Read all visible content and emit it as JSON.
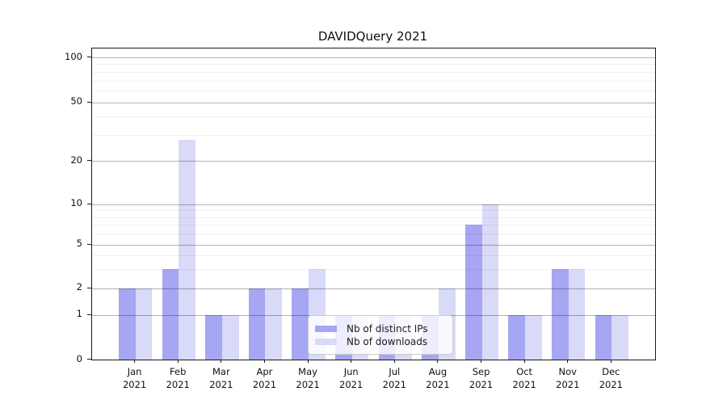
{
  "title": "DAVIDQuery 2021",
  "legend": {
    "items": [
      {
        "label": "Nb of distinct IPs",
        "color": "#a6a6f2"
      },
      {
        "label": "Nb of downloads",
        "color": "#d9d9f8"
      }
    ]
  },
  "chart_data": {
    "type": "bar",
    "title": "DAVIDQuery 2021",
    "categories": [
      "Jan 2021",
      "Feb 2021",
      "Mar 2021",
      "Apr 2021",
      "May 2021",
      "Jun 2021",
      "Jul 2021",
      "Aug 2021",
      "Sep 2021",
      "Oct 2021",
      "Nov 2021",
      "Dec 2021"
    ],
    "x_tick_labels": [
      {
        "line1": "Jan",
        "line2": "2021"
      },
      {
        "line1": "Feb",
        "line2": "2021"
      },
      {
        "line1": "Mar",
        "line2": "2021"
      },
      {
        "line1": "Apr",
        "line2": "2021"
      },
      {
        "line1": "May",
        "line2": "2021"
      },
      {
        "line1": "Jun",
        "line2": "2021"
      },
      {
        "line1": "Jul",
        "line2": "2021"
      },
      {
        "line1": "Aug",
        "line2": "2021"
      },
      {
        "line1": "Sep",
        "line2": "2021"
      },
      {
        "line1": "Oct",
        "line2": "2021"
      },
      {
        "line1": "Nov",
        "line2": "2021"
      },
      {
        "line1": "Dec",
        "line2": "2021"
      }
    ],
    "series": [
      {
        "name": "Nb of distinct IPs",
        "color": "#a6a6f2",
        "values": [
          2,
          3,
          1,
          2,
          2,
          1,
          1,
          1,
          7,
          1,
          3,
          1
        ]
      },
      {
        "name": "Nb of downloads",
        "color": "#d9d9f8",
        "values": [
          2,
          28,
          1,
          2,
          3,
          1,
          1,
          2,
          10,
          1,
          3,
          1
        ]
      }
    ],
    "yscale": "symlog",
    "ytick_values": [
      0,
      1,
      2,
      5,
      10,
      20,
      50,
      100
    ],
    "ytick_labels": [
      "0",
      "1",
      "2",
      "5",
      "10",
      "20",
      "50",
      "100"
    ],
    "minor_ytick_values": [
      3,
      4,
      6,
      7,
      8,
      9,
      30,
      40,
      60,
      70,
      80,
      90
    ],
    "ylim": [
      0,
      115
    ],
    "grid": "both",
    "legend_position": "lower center",
    "colors": {
      "bar_ips": "#a6a6f2",
      "bar_downloads": "#d9d9f8",
      "major_grid": "#b3b3b3",
      "minor_grid": "#f1f1f1",
      "spine": "#1a1a1a",
      "text": "#111111"
    }
  }
}
